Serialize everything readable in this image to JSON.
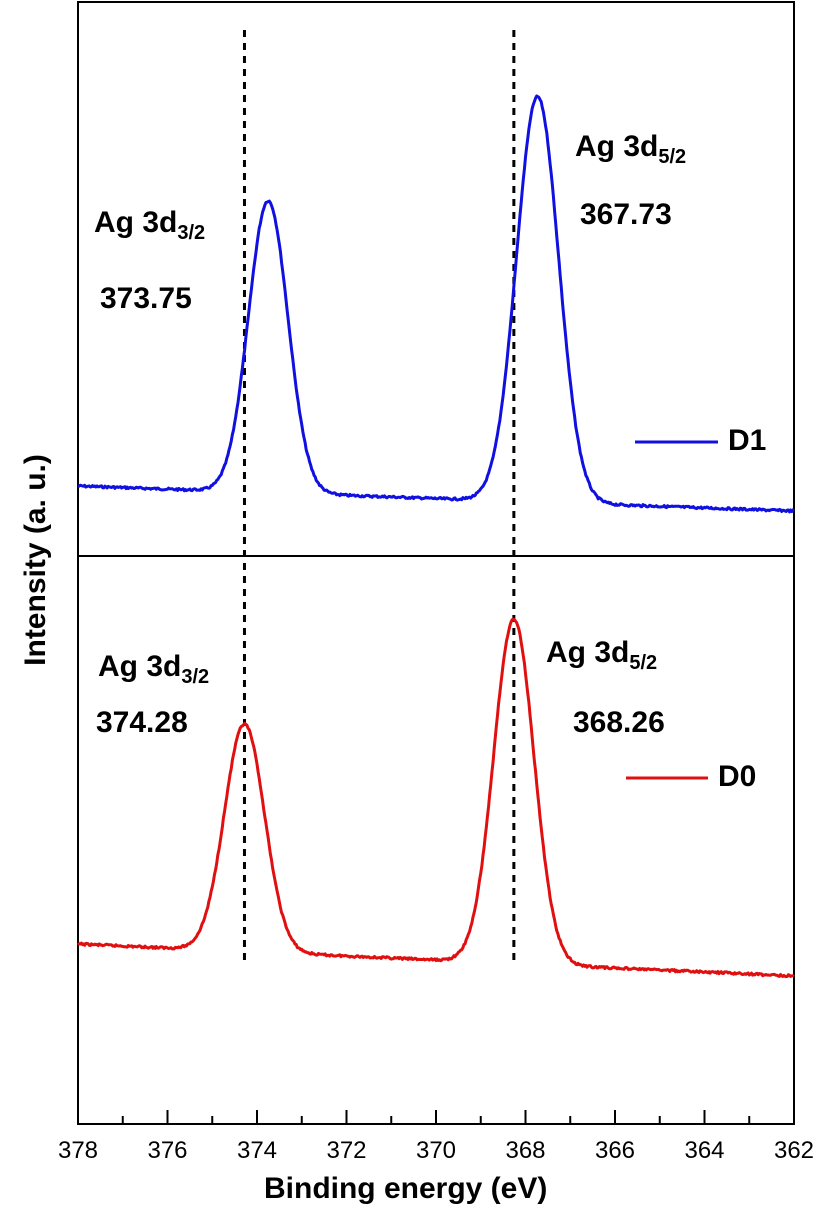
{
  "chart_data": [
    {
      "type": "line",
      "panel": "top",
      "series": [
        {
          "name": "D1",
          "color": "#1010e0",
          "baseline_left": 0.1,
          "baseline_right": 0.05,
          "peaks": [
            {
              "x": 373.75,
              "height": 0.72,
              "sigma": 0.44
            },
            {
              "x": 367.73,
              "height": 1.0,
              "sigma": 0.47
            }
          ]
        }
      ],
      "peak_labels": [
        {
          "name": "Ag 3d",
          "sub": "3/2",
          "value": "373.75"
        },
        {
          "name": "Ag 3d",
          "sub": "5/2",
          "value": "367.73"
        }
      ]
    },
    {
      "type": "line",
      "panel": "bottom",
      "series": [
        {
          "name": "D0",
          "color": "#e01010",
          "baseline_left": 0.1,
          "baseline_right": 0.04,
          "peaks": [
            {
              "x": 374.28,
              "height": 0.66,
              "sigma": 0.45
            },
            {
              "x": 368.26,
              "height": 1.0,
              "sigma": 0.45
            }
          ]
        }
      ],
      "peak_labels": [
        {
          "name": "Ag 3d",
          "sub": "3/2",
          "value": "374.28"
        },
        {
          "name": "Ag 3d",
          "sub": "5/2",
          "value": "368.26"
        }
      ]
    }
  ],
  "axes": {
    "xlabel": "Binding energy (eV)",
    "ylabel": "Intensity (a. u.)",
    "xlim": [
      378,
      362
    ],
    "x_ticks": [
      "378",
      "376",
      "374",
      "372",
      "370",
      "368",
      "366",
      "364",
      "362"
    ],
    "y_ticks": "none"
  },
  "reference_lines": [
    374.28,
    368.26
  ],
  "legend": [
    {
      "name": "D1",
      "panel": "top",
      "placement": "right"
    },
    {
      "name": "D0",
      "panel": "bottom",
      "placement": "right"
    }
  ]
}
